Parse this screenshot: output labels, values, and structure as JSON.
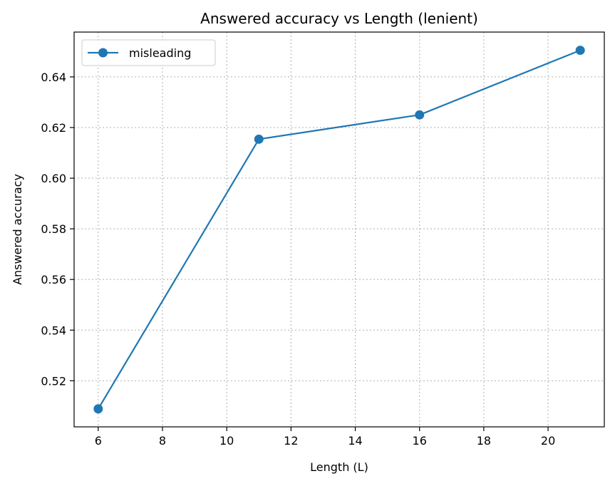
{
  "chart_data": {
    "type": "line",
    "title": "Answered accuracy vs Length (lenient)",
    "xlabel": "Length (L)",
    "ylabel": "Answered accuracy",
    "xlim": [
      5.25,
      21.75
    ],
    "ylim": [
      0.5018,
      0.6577
    ],
    "xticks": [
      6,
      8,
      10,
      12,
      14,
      16,
      18,
      20
    ],
    "yticks": [
      0.52,
      0.54,
      0.56,
      0.58,
      0.6,
      0.62,
      0.64
    ],
    "xtick_labels": [
      "6",
      "8",
      "10",
      "12",
      "14",
      "16",
      "18",
      "20"
    ],
    "ytick_labels": [
      "0.52",
      "0.54",
      "0.56",
      "0.58",
      "0.60",
      "0.62",
      "0.64"
    ],
    "grid": true,
    "legend_position": "top-left",
    "series": [
      {
        "name": "misleading",
        "color": "#1f77b4",
        "marker": "circle",
        "x": [
          6,
          11,
          16,
          21
        ],
        "y": [
          0.5089,
          0.6154,
          0.625,
          0.6505
        ]
      }
    ]
  }
}
